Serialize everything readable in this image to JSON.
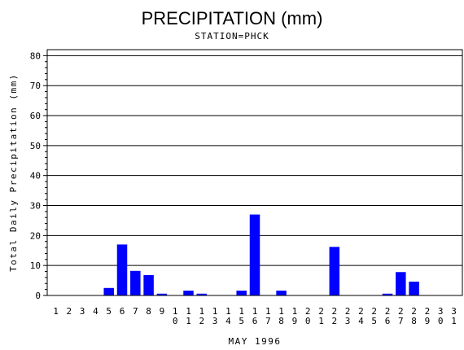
{
  "chart_data": {
    "type": "bar",
    "title": "PRECIPITATION (mm)",
    "subtitle": "STATION=PHCK",
    "xlabel": "MAY 1996",
    "ylabel": "Total Daily Precipitation (mm)",
    "ylim": [
      0,
      82
    ],
    "yticks": [
      0,
      10,
      20,
      30,
      40,
      50,
      60,
      70,
      80
    ],
    "grid": true,
    "bar_color": "#0000ff",
    "categories": [
      "1",
      "2",
      "3",
      "4",
      "5",
      "6",
      "7",
      "8",
      "9",
      "10",
      "11",
      "12",
      "13",
      "14",
      "15",
      "16",
      "17",
      "18",
      "19",
      "20",
      "21",
      "22",
      "23",
      "24",
      "25",
      "26",
      "27",
      "28",
      "29",
      "30",
      "31"
    ],
    "values": [
      0,
      0,
      0,
      0,
      2.5,
      17,
      8.2,
      6.8,
      0.6,
      0,
      1.6,
      0.6,
      0,
      0,
      1.6,
      27,
      0,
      1.6,
      0,
      0,
      0,
      16.2,
      0,
      0,
      0,
      0.6,
      7.8,
      4.6,
      0,
      0,
      0
    ]
  }
}
